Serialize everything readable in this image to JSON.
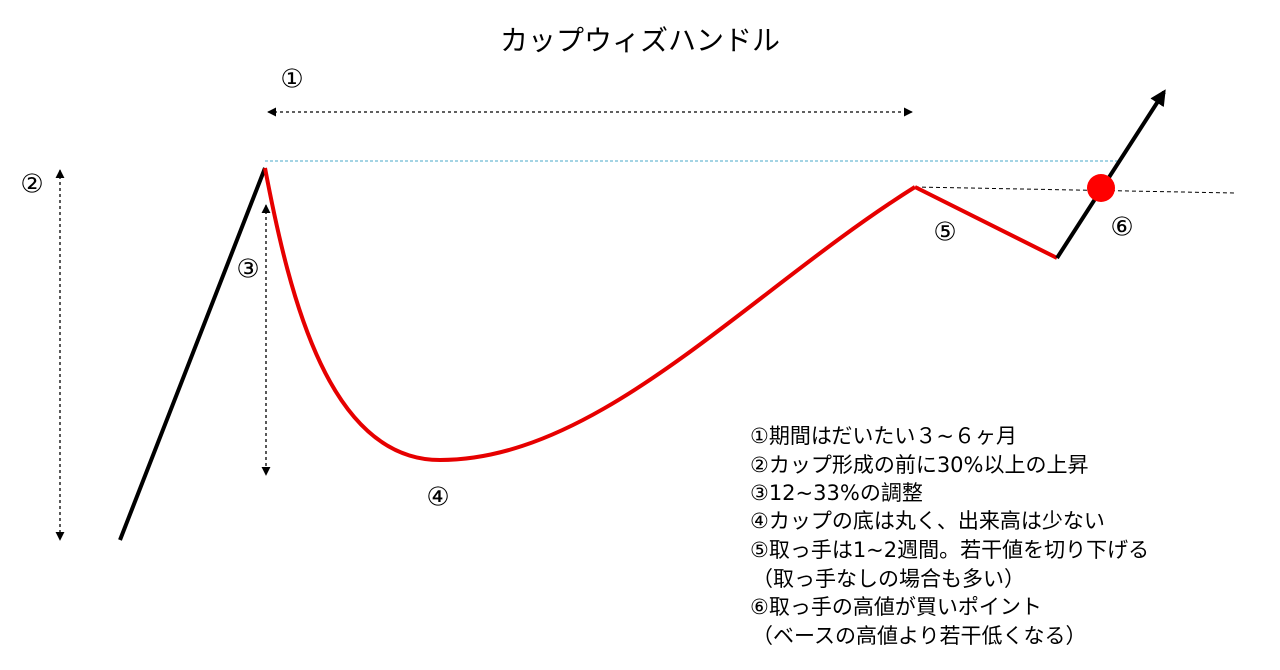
{
  "title": "カップウィズハンドル",
  "markers": [
    "①",
    "②",
    "③",
    "④",
    "⑤",
    "⑥"
  ],
  "notes": [
    "①期間はだいたい３~６ヶ月",
    "②カップ形成の前に30%以上の上昇",
    "③12~33%の調整",
    "④カップの底は丸く、出来高は少ない",
    "⑤取っ手は1~2週間。若干値を切り下げる",
    "（取っ手なしの場合も多い）",
    "⑥取っ手の高値が買いポイント",
    "（ベースの高値より若干低くなる）"
  ]
}
